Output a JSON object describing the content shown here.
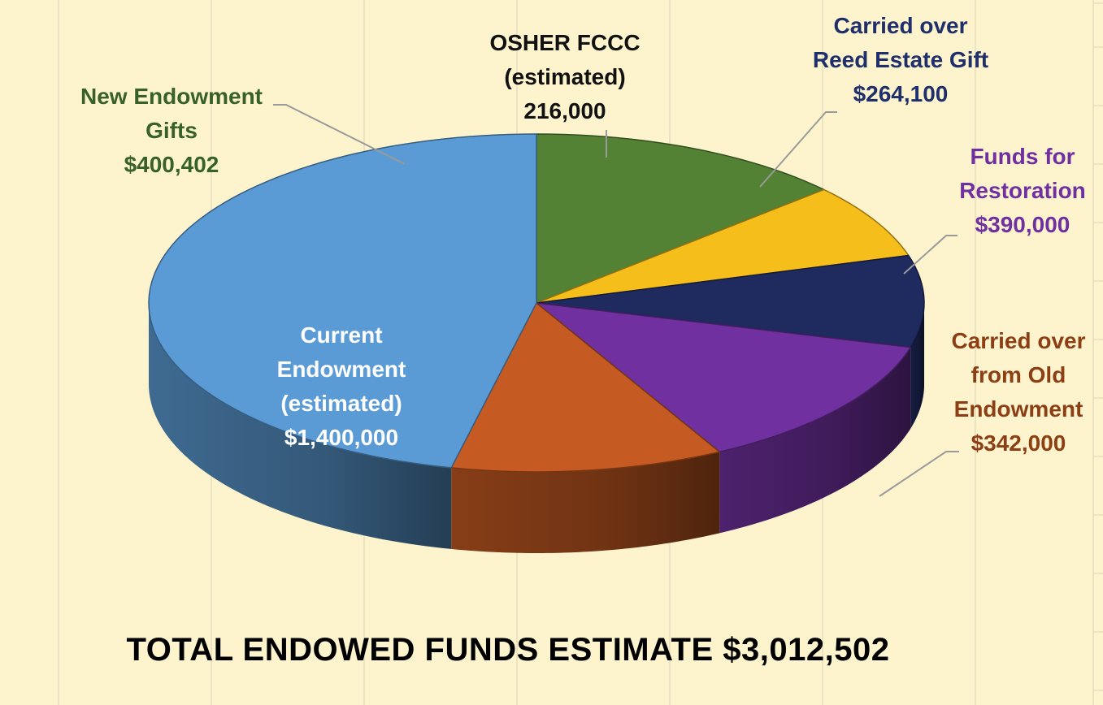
{
  "chart_data": {
    "type": "pie",
    "title": "",
    "total_label": "TOTAL ENDOWED FUNDS ESTIMATE $3,012,502",
    "slices": [
      {
        "name": "Current Endowment (estimated)",
        "value": 1400000,
        "label_lines": [
          "Current",
          "Endowment",
          "(estimated)",
          "$1,400,000"
        ],
        "color": "#5B9BD5",
        "label_color": "#FFFFFF"
      },
      {
        "name": "New Endowment Gifts",
        "value": 400402,
        "label_lines": [
          "New Endowment",
          "Gifts",
          "$400,402"
        ],
        "color": "#548235",
        "label_color": "#38612A"
      },
      {
        "name": "OSHER FCCC (estimated)",
        "value": 216000,
        "label_lines": [
          "OSHER FCCC",
          "(estimated)",
          "216,000"
        ],
        "color": "#F6BE1B",
        "label_color": "#111111"
      },
      {
        "name": "Carried over Reed Estate Gift",
        "value": 264100,
        "label_lines": [
          "Carried over",
          "Reed Estate Gift",
          "$264,100"
        ],
        "color": "#1F2A5E",
        "label_color": "#1F2F6B"
      },
      {
        "name": "Funds for Restoration",
        "value": 390000,
        "label_lines": [
          "Funds for",
          "Restoration",
          "$390,000"
        ],
        "color": "#7030A0",
        "label_color": "#7030A0"
      },
      {
        "name": "Carried over from Old Endowment",
        "value": 342000,
        "label_lines": [
          "Carried over",
          "from Old",
          "Endowment",
          "$342,000"
        ],
        "color": "#C55A22",
        "label_color": "#8C3E14"
      }
    ]
  },
  "colors": {
    "background": "#FDF4CE",
    "grid": "#D9D2B4",
    "leader": "#9A9A9A"
  }
}
